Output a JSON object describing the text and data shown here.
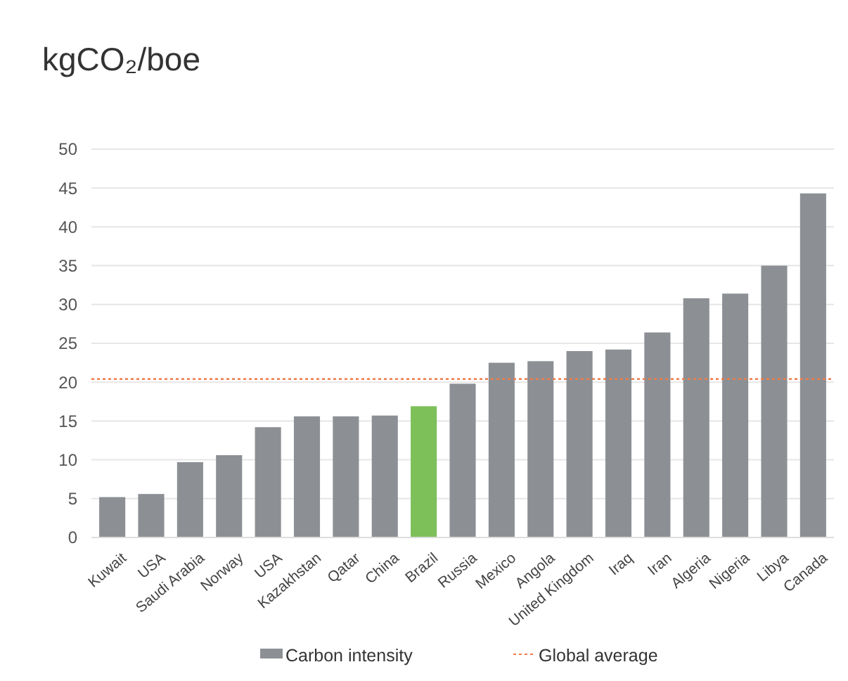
{
  "chart_data": {
    "type": "bar",
    "title": "kgCO₂/boe",
    "categories": [
      "Kuwait",
      "USA",
      "Saudi Arabia",
      "Norway",
      "USA",
      "Kazakhstan",
      "Qatar",
      "China",
      "Brazil",
      "Russia",
      "Mexico",
      "Angola",
      "United Kingdom",
      "Iraq",
      "Iran",
      "Algeria",
      "Nigeria",
      "Libya",
      "Canada"
    ],
    "series": [
      {
        "name": "Carbon intensity",
        "color": "#8c9094",
        "colors": [
          "#8c9094",
          "#8c9094",
          "#8c9094",
          "#8c9094",
          "#8c9094",
          "#8c9094",
          "#8c9094",
          "#8c9094",
          "#7dc05a",
          "#8c9094",
          "#8c9094",
          "#8c9094",
          "#8c9094",
          "#8c9094",
          "#8c9094",
          "#8c9094",
          "#8c9094",
          "#8c9094",
          "#8c9094"
        ],
        "values": [
          5.2,
          5.6,
          9.7,
          10.6,
          14.2,
          15.6,
          15.6,
          15.7,
          16.9,
          19.8,
          22.5,
          22.7,
          24.0,
          24.2,
          26.4,
          30.8,
          31.4,
          35.0,
          44.3
        ]
      }
    ],
    "ylim": [
      0,
      50
    ],
    "yticks": [
      0,
      5,
      10,
      15,
      20,
      25,
      30,
      35,
      40,
      45,
      50
    ],
    "grid": "y",
    "legend": "bottom",
    "ref_lines": [
      {
        "axis": "y",
        "value": 20.4,
        "label": "Global average",
        "color": "#f07a4a",
        "line_style": "dotted"
      }
    ]
  }
}
